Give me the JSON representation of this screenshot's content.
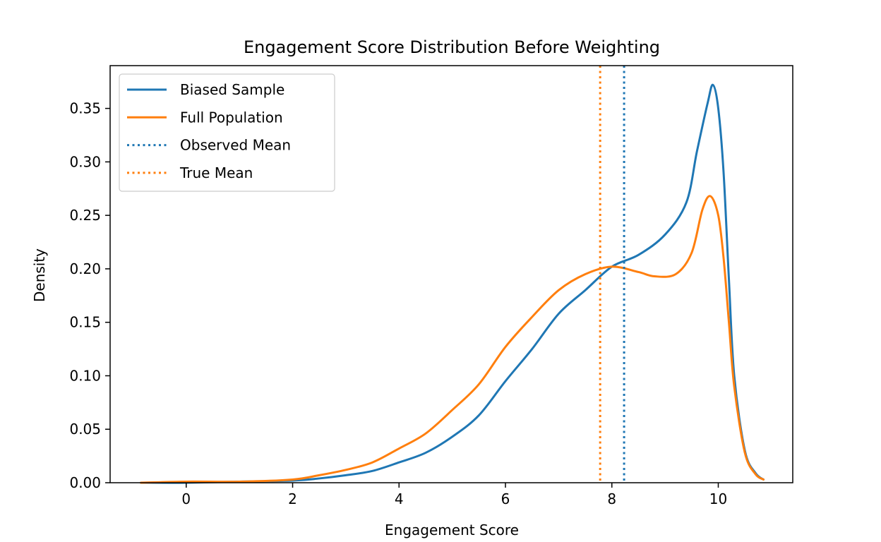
{
  "chart_data": {
    "type": "line",
    "title": "Engagement Score Distribution Before Weighting",
    "xlabel": "Engagement Score",
    "ylabel": "Density",
    "xlim": [
      -1.43,
      11.4
    ],
    "ylim": [
      0.0,
      0.39
    ],
    "xticks": [
      0,
      2,
      4,
      6,
      8,
      10
    ],
    "xtick_labels": [
      "0",
      "2",
      "4",
      "6",
      "8",
      "10"
    ],
    "yticks": [
      0.0,
      0.05,
      0.1,
      0.15,
      0.2,
      0.25,
      0.3,
      0.35
    ],
    "ytick_labels": [
      "0.00",
      "0.05",
      "0.10",
      "0.15",
      "0.20",
      "0.25",
      "0.30",
      "0.35"
    ],
    "grid": false,
    "legend_position": "upper-left",
    "series": [
      {
        "name": "Biased Sample",
        "color": "#1f77b4",
        "style": "solid",
        "x": [
          -0.85,
          0,
          1,
          2,
          2.5,
          3,
          3.5,
          4,
          4.5,
          5,
          5.5,
          6,
          6.5,
          7,
          7.5,
          8,
          8.5,
          9,
          9.4,
          9.6,
          9.8,
          9.9,
          10.0,
          10.1,
          10.2,
          10.3,
          10.5,
          10.7,
          10.85
        ],
        "y": [
          0.0,
          0.0,
          0.001,
          0.002,
          0.004,
          0.007,
          0.011,
          0.019,
          0.028,
          0.043,
          0.063,
          0.095,
          0.125,
          0.158,
          0.18,
          0.202,
          0.213,
          0.232,
          0.262,
          0.31,
          0.355,
          0.372,
          0.35,
          0.29,
          0.19,
          0.1,
          0.03,
          0.009,
          0.003
        ]
      },
      {
        "name": "Full Population",
        "color": "#ff7f0e",
        "style": "solid",
        "x": [
          -0.85,
          0,
          1,
          2,
          2.5,
          3,
          3.5,
          4,
          4.5,
          5,
          5.5,
          6,
          6.5,
          7,
          7.5,
          8,
          8.5,
          8.8,
          9.2,
          9.5,
          9.7,
          9.85,
          10.0,
          10.1,
          10.2,
          10.3,
          10.5,
          10.7,
          10.85
        ],
        "y": [
          0.0,
          0.001,
          0.001,
          0.003,
          0.007,
          0.012,
          0.019,
          0.032,
          0.046,
          0.068,
          0.092,
          0.127,
          0.155,
          0.18,
          0.195,
          0.202,
          0.197,
          0.193,
          0.195,
          0.215,
          0.255,
          0.268,
          0.25,
          0.21,
          0.15,
          0.09,
          0.028,
          0.008,
          0.003
        ]
      }
    ],
    "vlines": [
      {
        "name": "Observed Mean",
        "x": 8.23,
        "color": "#1f77b4",
        "style": "dotted"
      },
      {
        "name": "True Mean",
        "x": 7.78,
        "color": "#ff7f0e",
        "style": "dotted"
      }
    ],
    "legend": [
      {
        "label": "Biased Sample",
        "color": "#1f77b4",
        "style": "solid"
      },
      {
        "label": "Full Population",
        "color": "#ff7f0e",
        "style": "solid"
      },
      {
        "label": "Observed Mean",
        "color": "#1f77b4",
        "style": "dotted"
      },
      {
        "label": "True Mean",
        "color": "#ff7f0e",
        "style": "dotted"
      }
    ]
  }
}
